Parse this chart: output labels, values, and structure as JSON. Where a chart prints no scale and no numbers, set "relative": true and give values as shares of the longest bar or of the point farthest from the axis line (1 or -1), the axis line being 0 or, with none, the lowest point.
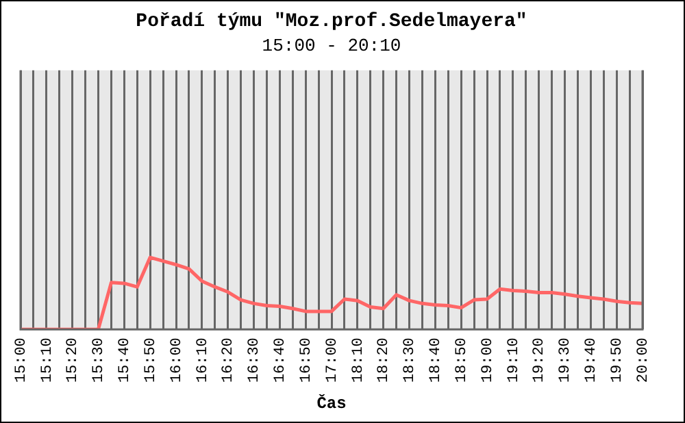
{
  "chart_data": {
    "type": "line",
    "title": "Pořadí týmu \"Moz.prof.Sedelmayera\"",
    "subtitle": "15:00 - 20:10",
    "xlabel": "Čas",
    "relative": true,
    "grid": "x",
    "legend": false,
    "categories": [
      "15:00",
      null,
      "15:10",
      null,
      "15:20",
      null,
      "15:30",
      null,
      "15:40",
      null,
      "15:50",
      null,
      "16:00",
      null,
      "16:10",
      null,
      "16:20",
      null,
      "16:30",
      null,
      "16:40",
      null,
      "16:50",
      null,
      "17:00",
      null,
      "18:10",
      null,
      "18:20",
      null,
      "18:30",
      null,
      "18:40",
      null,
      "18:50",
      null,
      "19:00",
      null,
      "19:10",
      null,
      "19:20",
      null,
      "19:30",
      null,
      "19:40",
      null,
      "19:50",
      null,
      "20:00"
    ],
    "series": [
      {
        "color": "#ff6666",
        "values": [
          0,
          0,
          0,
          0,
          0,
          0,
          0,
          0.65,
          0.64,
          0.59,
          1,
          0.95,
          0.9,
          0.84,
          0.67,
          0.59,
          0.52,
          0.41,
          0.36,
          0.33,
          0.32,
          0.29,
          0.25,
          0.25,
          0.25,
          0.42,
          0.4,
          0.31,
          0.29,
          0.48,
          0.4,
          0.36,
          0.34,
          0.33,
          0.3,
          0.41,
          0.42,
          0.56,
          0.54,
          0.53,
          0.51,
          0.51,
          0.49,
          0.46,
          0.44,
          0.42,
          0.39,
          0.37,
          0.36
        ]
      }
    ]
  }
}
